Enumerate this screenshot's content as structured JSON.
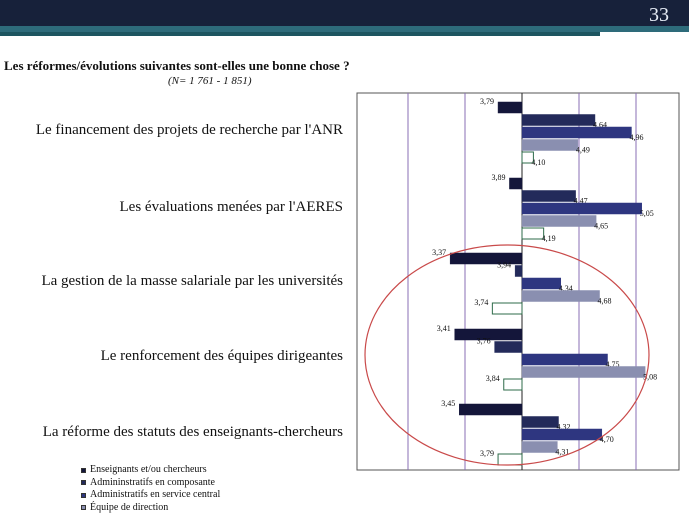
{
  "slide": {
    "number": "33"
  },
  "chart_data": {
    "type": "bar",
    "orientation": "horizontal",
    "title": "Les réformes/évolutions suivantes sont-elles une bonne chose ?",
    "subtitle": "(N= 1 761 - 1 851)",
    "baseline": 4,
    "xlim": [
      3,
      5.5
    ],
    "grid": true,
    "legend_position": "bottom-left",
    "categories": [
      "Le financement des projets de recherche par l'ANR",
      "Les évaluations menées par l'AERES",
      "La gestion de la masse salariale par les universités",
      "Le renforcement des équipes dirigeantes",
      "La réforme des statuts des enseignants-chercheurs"
    ],
    "series": [
      {
        "name": "Enseignants et/ou chercheurs",
        "color": "#14163a",
        "values": [
          3.79,
          3.89,
          3.37,
          3.41,
          3.45
        ],
        "labels": [
          "3,79",
          "3,89",
          "3,37",
          "3,41",
          "3,45"
        ]
      },
      {
        "name": "Admininstratifs en composante",
        "color": "#232a5a",
        "values": [
          4.64,
          4.47,
          3.94,
          3.76,
          4.32
        ],
        "labels": [
          "4,64",
          "4,47",
          "3,94",
          "3,76",
          "4,32"
        ]
      },
      {
        "name": "Administratifs en service central",
        "color": "#2e3680",
        "values": [
          4.96,
          5.05,
          4.34,
          4.75,
          4.7
        ],
        "labels": [
          "4,96",
          "5,05",
          "4.34",
          "4,75",
          "4,70"
        ]
      },
      {
        "name": "Équipe de direction",
        "color": "#8a8fb0",
        "values": [
          4.49,
          4.65,
          4.68,
          5.08,
          4.31
        ],
        "labels": [
          "4,49",
          "4,65",
          "4,68",
          "5,08",
          "4,31"
        ]
      },
      {
        "name": "",
        "color": "#ffffff",
        "stroke": "#2e6b4a",
        "values": [
          4.1,
          4.19,
          3.74,
          3.84,
          3.79
        ],
        "labels": [
          "4,10",
          "4,19",
          "3,74",
          "3,84",
          "3,79"
        ]
      }
    ]
  }
}
